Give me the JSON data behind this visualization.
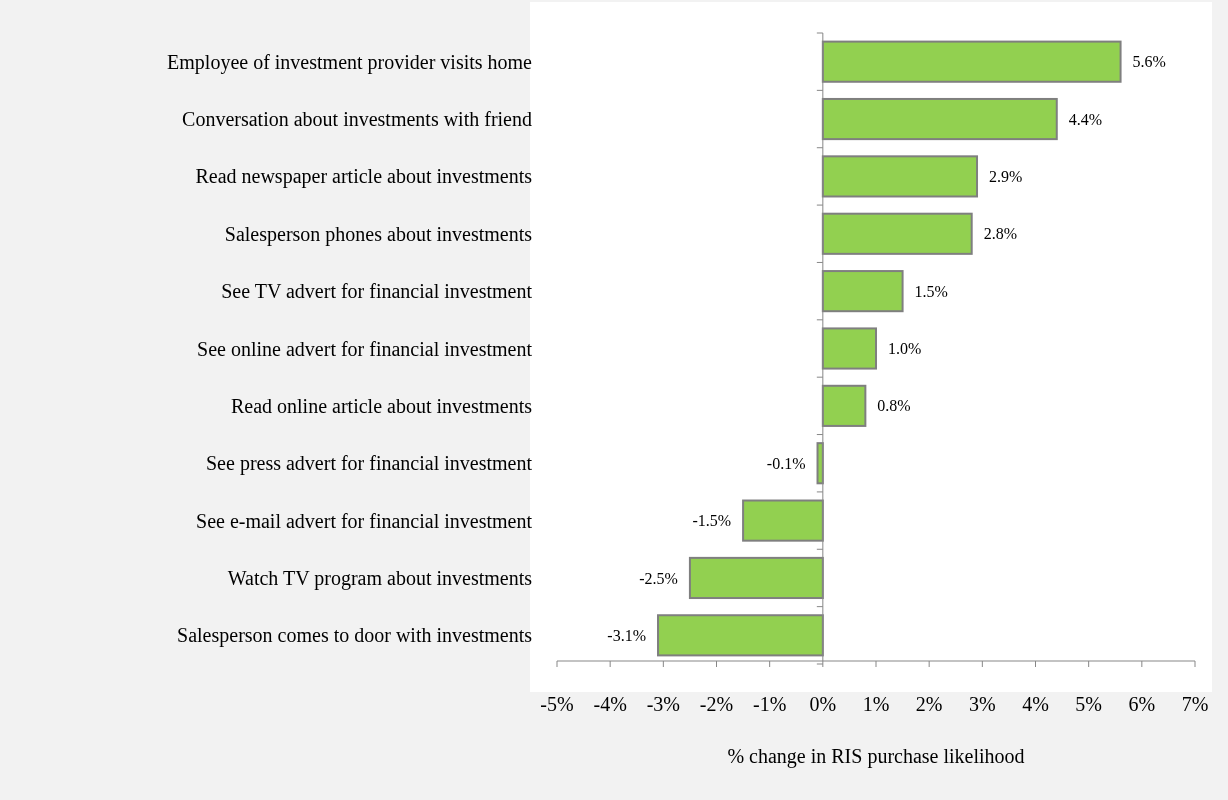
{
  "chart_data": {
    "type": "bar",
    "orientation": "horizontal",
    "xlabel": "% change in RIS purchase likelihood",
    "categories": [
      "Employee of investment provider visits home",
      "Conversation about investments with friend",
      "Read newspaper article about investments",
      "Salesperson phones about investments",
      "See TV advert for financial investment",
      "See online advert for financial investment",
      "Read online article about investments",
      "See press advert for financial investment",
      "See e-mail advert for financial investment",
      "Watch TV program about investments",
      "Salesperson comes to door with investments"
    ],
    "values": [
      5.6,
      4.4,
      2.9,
      2.8,
      1.5,
      1.0,
      0.8,
      -0.1,
      -1.5,
      -2.5,
      -3.1
    ],
    "value_labels": [
      "5.6%",
      "4.4%",
      "2.9%",
      "2.8%",
      "1.5%",
      "1.0%",
      "0.8%",
      "-0.1%",
      "-1.5%",
      "-2.5%",
      "-3.1%"
    ],
    "color": "#92d050",
    "xlim": [
      -5,
      7
    ],
    "xticks": [
      {
        "value": -5,
        "label": "-5%"
      },
      {
        "value": -4,
        "label": "-4%"
      },
      {
        "value": -3,
        "label": "-3%"
      },
      {
        "value": -2,
        "label": "-2%"
      },
      {
        "value": -1,
        "label": "-1%"
      },
      {
        "value": 0,
        "label": "0%"
      },
      {
        "value": 1,
        "label": "1%"
      },
      {
        "value": 2,
        "label": "2%"
      },
      {
        "value": 3,
        "label": "3%"
      },
      {
        "value": 4,
        "label": "4%"
      },
      {
        "value": 5,
        "label": "5%"
      },
      {
        "value": 6,
        "label": "6%"
      },
      {
        "value": 7,
        "label": "7%"
      }
    ],
    "legend": false
  }
}
